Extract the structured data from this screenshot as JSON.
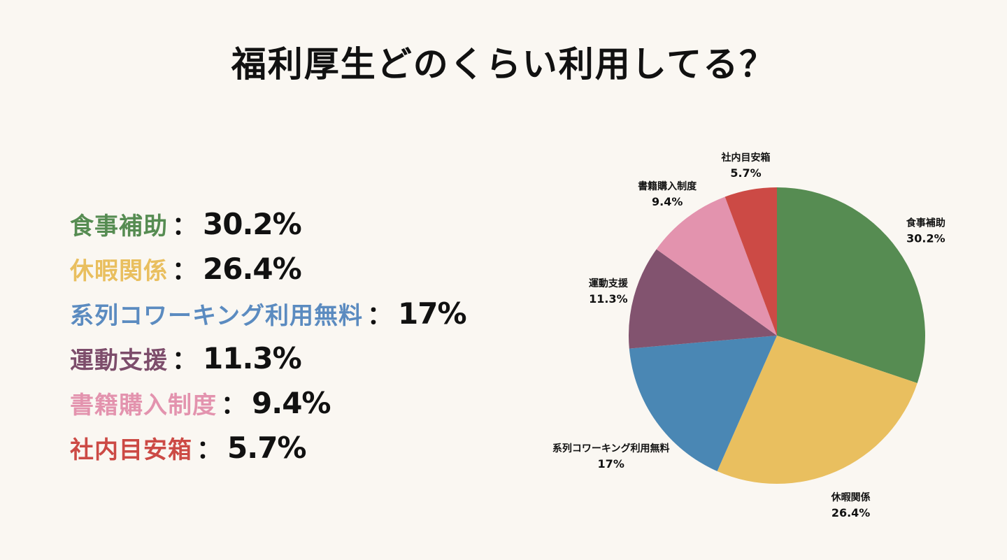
{
  "title": "福利厚生どのくらい利用してる？",
  "chart_data": {
    "type": "pie",
    "title": "福利厚生どのくらい利用してる？",
    "start_angle_deg": 0,
    "direction": "clockwise",
    "slices": [
      {
        "label": "食事補助",
        "value": 30.2,
        "value_label": "30.2%",
        "color": "#568c52"
      },
      {
        "label": "休暇関係",
        "value": 26.4,
        "value_label": "26.4%",
        "color": "#e9bf5f"
      },
      {
        "label": "系列コワーキング利用無料",
        "value": 17,
        "value_label": "17%",
        "color": "#4a87b4"
      },
      {
        "label": "運動支援",
        "value": 11.3,
        "value_label": "11.3%",
        "color": "#82536f"
      },
      {
        "label": "書籍購入制度",
        "value": 9.4,
        "value_label": "9.4%",
        "color": "#e393ae"
      },
      {
        "label": "社内目安箱",
        "value": 5.7,
        "value_label": "5.7%",
        "color": "#cc4a45"
      }
    ]
  },
  "legend": {
    "colon": "："
  },
  "legend_label_colors": [
    "#568c52",
    "#e9bf5f",
    "#5b8bc0",
    "#7d4d6b",
    "#e393ae",
    "#cc4a45"
  ]
}
